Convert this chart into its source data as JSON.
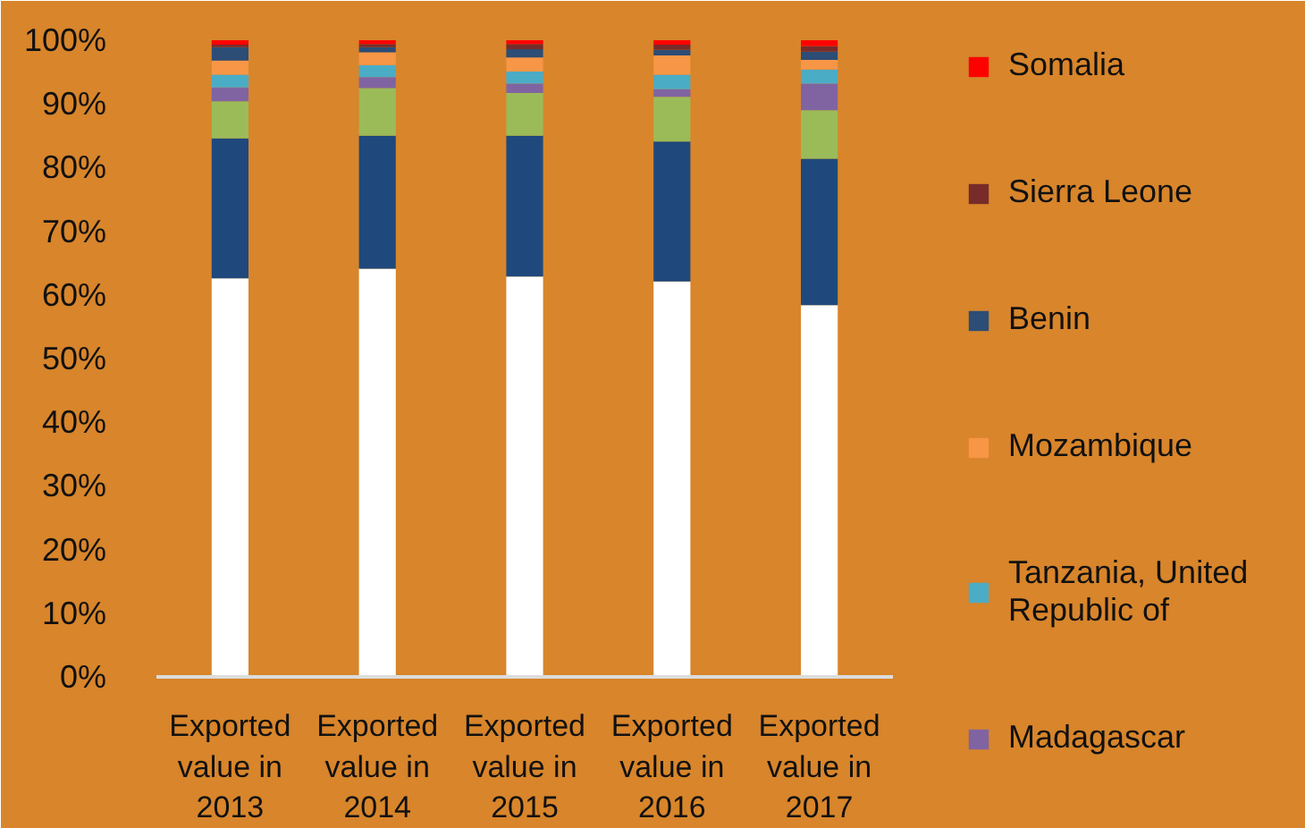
{
  "chart_data": {
    "type": "bar",
    "stacked": true,
    "categories": [
      "Exported value in 2013",
      "Exported value in 2014",
      "Exported value in 2015",
      "Exported value in 2016",
      "Exported value in 2017"
    ],
    "ylim": [
      0,
      100
    ],
    "yticks": [
      {
        "value": 0,
        "label": "0%"
      },
      {
        "value": 10,
        "label": "10%"
      },
      {
        "value": 20,
        "label": "20%"
      },
      {
        "value": 30,
        "label": "30%"
      },
      {
        "value": 40,
        "label": "40%"
      },
      {
        "value": 50,
        "label": "50%"
      },
      {
        "value": 60,
        "label": "60%"
      },
      {
        "value": 70,
        "label": "70%"
      },
      {
        "value": 80,
        "label": "80%"
      },
      {
        "value": 90,
        "label": "90%"
      },
      {
        "value": 100,
        "label": "100%"
      }
    ],
    "grid": false,
    "legend": "right",
    "series": [
      {
        "color": "#ffffff",
        "values": [
          62.6,
          64.1,
          62.9,
          62.1,
          58.4
        ]
      },
      {
        "color": "#1f497d",
        "values": [
          22.0,
          20.9,
          22.1,
          22.0,
          23.0
        ]
      },
      {
        "color": "#9bbb59",
        "values": [
          5.8,
          7.5,
          6.7,
          7.0,
          7.6
        ]
      },
      {
        "name": "Madagascar",
        "color": "#8064a2",
        "values": [
          2.2,
          1.7,
          1.5,
          1.2,
          4.2
        ]
      },
      {
        "name": "Tanzania, United Republic of",
        "color": "#4bacc6",
        "values": [
          2.0,
          1.9,
          1.9,
          2.3,
          2.2
        ]
      },
      {
        "name": "Mozambique",
        "color": "#f79646",
        "values": [
          2.2,
          2.0,
          2.2,
          3.0,
          1.5
        ]
      },
      {
        "name": "Benin",
        "color": "#2c4d75",
        "values": [
          2.1,
          0.8,
          1.3,
          0.9,
          1.3
        ]
      },
      {
        "name": "Sierra Leone",
        "color": "#772c2a",
        "values": [
          0.4,
          0.5,
          0.8,
          0.8,
          0.9
        ]
      },
      {
        "name": "Somalia",
        "color": "#ff0000",
        "values": [
          0.7,
          0.6,
          0.6,
          0.7,
          0.9
        ]
      }
    ]
  }
}
